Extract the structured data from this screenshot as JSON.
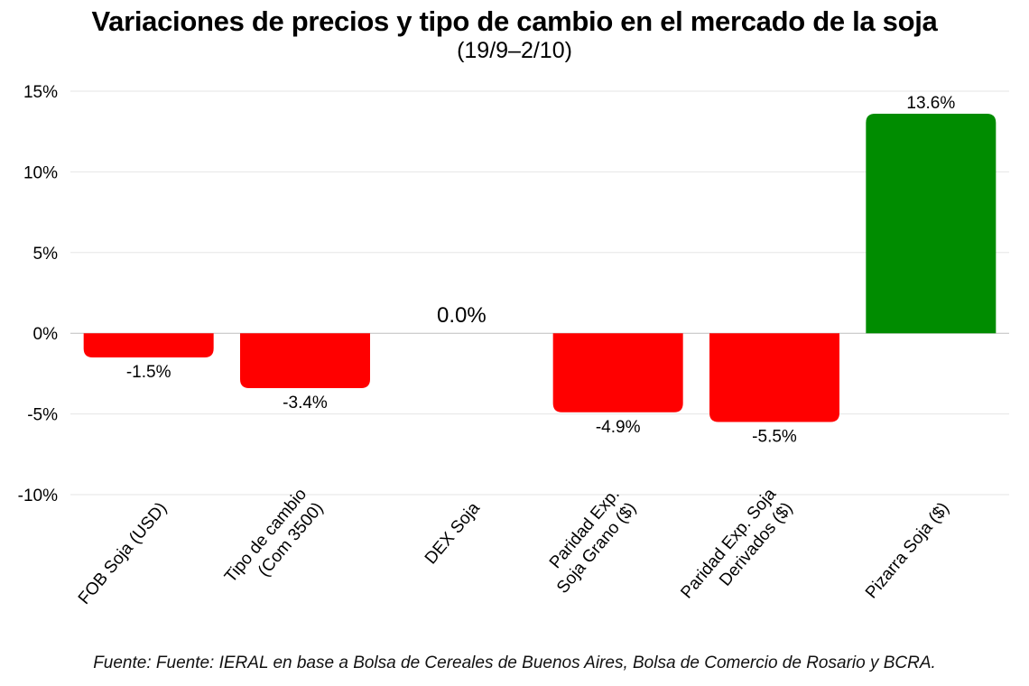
{
  "chart_data": {
    "type": "bar",
    "title": "Variaciones de precios y tipo de cambio en el mercado de la soja",
    "subtitle": "(19/9–2/10)",
    "categories": [
      [
        "FOB Soja (USD)"
      ],
      [
        "Tipo de cambio",
        "(Com 3500)"
      ],
      [
        "DEX Soja"
      ],
      [
        "Paridad Exp.",
        "Soja Grano ($)"
      ],
      [
        "Paridad Exp. Soja",
        "Derivados ($)"
      ],
      [
        "Pizarra Soja ($)"
      ]
    ],
    "values": [
      -1.5,
      -3.4,
      0.0,
      -4.9,
      -5.5,
      13.6
    ],
    "data_labels": [
      "-1.5%",
      "-3.4%",
      "0.0%",
      "-4.9%",
      "-5.5%",
      "13.6%"
    ],
    "colors": [
      "#ff0000",
      "#ff0000",
      "#ff0000",
      "#ff0000",
      "#ff0000",
      "#008c00"
    ],
    "ylim": [
      -10,
      15
    ],
    "yticks": [
      15,
      10,
      5,
      0,
      -5,
      -10
    ],
    "ytick_labels": [
      "15%",
      "10%",
      "5%",
      "0%",
      "-5%",
      "-10%"
    ],
    "xlabel": "",
    "ylabel": "",
    "grid": true,
    "legend": "none"
  },
  "source": "Fuente: Fuente: IERAL en base a Bolsa de Cereales de Buenos Aires, Bolsa de Comercio de Rosario y BCRA.",
  "colors": {
    "negative": "#ff0000",
    "positive": "#008c00",
    "grid": "#e6e6e6",
    "zero_line": "#bfbfbf"
  }
}
